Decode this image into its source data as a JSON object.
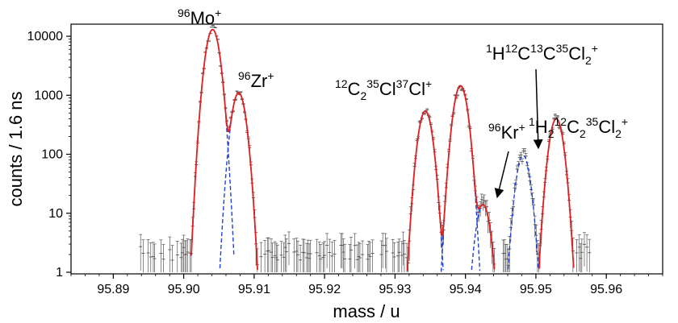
{
  "chart_data": {
    "type": "line",
    "title": "",
    "xlabel": "mass / u",
    "ylabel": "counts / 1.6 ns",
    "xlim": [
      95.884,
      95.968
    ],
    "ylim": [
      1,
      15000
    ],
    "y_scale": "log",
    "x_ticks": [
      95.89,
      95.9,
      95.91,
      95.92,
      95.93,
      95.94,
      95.95,
      95.96
    ],
    "x_tick_labels": [
      "95.89",
      "95.90",
      "95.91",
      "95.92",
      "95.93",
      "95.94",
      "95.95",
      "95.96"
    ],
    "y_ticks": [
      1,
      10,
      100,
      1000,
      10000
    ],
    "y_tick_labels": [
      "1",
      "10",
      "100",
      "1000",
      "10000"
    ],
    "grid": false,
    "colors": {
      "data": "#555555",
      "fit": "#e02020",
      "components": "#1f3fd6"
    },
    "peaks": [
      {
        "center": 95.9041,
        "height": 13000,
        "sigma": 0.00072
      },
      {
        "center": 95.9078,
        "height": 1100,
        "sigma": 0.00072
      },
      {
        "center": 95.9343,
        "height": 540,
        "sigma": 0.00072
      },
      {
        "center": 95.9393,
        "height": 1450,
        "sigma": 0.00072
      },
      {
        "center": 95.9425,
        "height": 14,
        "sigma": 0.00072
      },
      {
        "center": 95.9482,
        "height": 95,
        "sigma": 0.00072
      },
      {
        "center": 95.9529,
        "height": 400,
        "sigma": 0.00072
      }
    ],
    "annotations": [
      {
        "id": "mo96",
        "parts": [
          [
            "sup",
            "96"
          ],
          [
            "n",
            "Mo"
          ],
          [
            "sup",
            "+"
          ]
        ]
      },
      {
        "id": "zr96",
        "parts": [
          [
            "sup",
            "96"
          ],
          [
            "n",
            "Zr"
          ],
          [
            "sup",
            "+"
          ]
        ]
      },
      {
        "id": "c2cl2",
        "parts": [
          [
            "sup",
            "12"
          ],
          [
            "n",
            "C"
          ],
          [
            "sub",
            "2"
          ],
          [
            "sup",
            "35"
          ],
          [
            "n",
            "Cl"
          ],
          [
            "sup",
            "37"
          ],
          [
            "n",
            "Cl"
          ],
          [
            "sup",
            "+"
          ]
        ]
      },
      {
        "id": "kr96",
        "parts": [
          [
            "sup",
            "96"
          ],
          [
            "n",
            "Kr"
          ],
          [
            "sup",
            "+"
          ]
        ]
      },
      {
        "id": "hccl2",
        "parts": [
          [
            "sup",
            "1"
          ],
          [
            "n",
            "H"
          ],
          [
            "sup",
            "12"
          ],
          [
            "n",
            "C"
          ],
          [
            "sup",
            "13"
          ],
          [
            "n",
            "C"
          ],
          [
            "sup",
            "35"
          ],
          [
            "n",
            "Cl"
          ],
          [
            "sub",
            "2"
          ],
          [
            "sup",
            "+"
          ]
        ]
      },
      {
        "id": "h2c2cl2",
        "parts": [
          [
            "sup",
            "1"
          ],
          [
            "n",
            "H"
          ],
          [
            "sub",
            "2"
          ],
          [
            "sup",
            "12"
          ],
          [
            "n",
            "C"
          ],
          [
            "sub",
            "2"
          ],
          [
            "sup",
            "35"
          ],
          [
            "n",
            "Cl"
          ],
          [
            "sub",
            "2"
          ],
          [
            "sup",
            "+"
          ]
        ]
      }
    ]
  }
}
